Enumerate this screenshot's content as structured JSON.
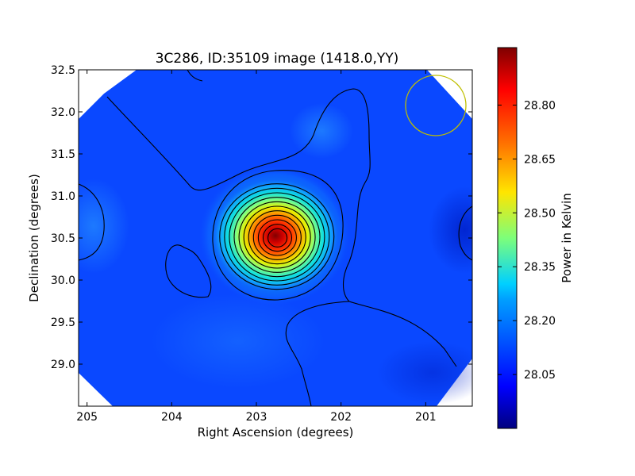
{
  "chart_data": {
    "type": "heatmap",
    "title": "3C286, ID:35109 image (1418.0,YY)",
    "xlabel": "Right Ascension (degrees)",
    "ylabel": "Declination (degrees)",
    "xlim": [
      205.1,
      200.45
    ],
    "ylim": [
      28.5,
      32.5
    ],
    "x_ticks": [
      205,
      204,
      203,
      202,
      201
    ],
    "x_tick_labels": [
      "205",
      "204",
      "203",
      "202",
      "201"
    ],
    "y_ticks": [
      29.0,
      29.5,
      30.0,
      30.5,
      31.0,
      31.5,
      32.0,
      32.5
    ],
    "y_tick_labels": [
      "29.0",
      "29.5",
      "30.0",
      "30.5",
      "31.0",
      "31.5",
      "32.0",
      "32.5"
    ],
    "colorbar": {
      "label": "Power in Kelvin",
      "colormap": "jet",
      "range": [
        27.9,
        28.96
      ],
      "ticks": [
        28.05,
        28.2,
        28.35,
        28.5,
        28.65,
        28.8
      ],
      "tick_labels": [
        "28.05",
        "28.20",
        "28.35",
        "28.50",
        "28.65",
        "28.80"
      ]
    },
    "peak": {
      "ra": 202.75,
      "dec": 30.5,
      "value": 28.95
    },
    "background_level": 28.08,
    "contour_count": 12,
    "beam_circle": {
      "ra": 200.9,
      "dec": 32.07,
      "radius_deg": 0.36,
      "color": "#bfbf00"
    },
    "grid": false
  }
}
